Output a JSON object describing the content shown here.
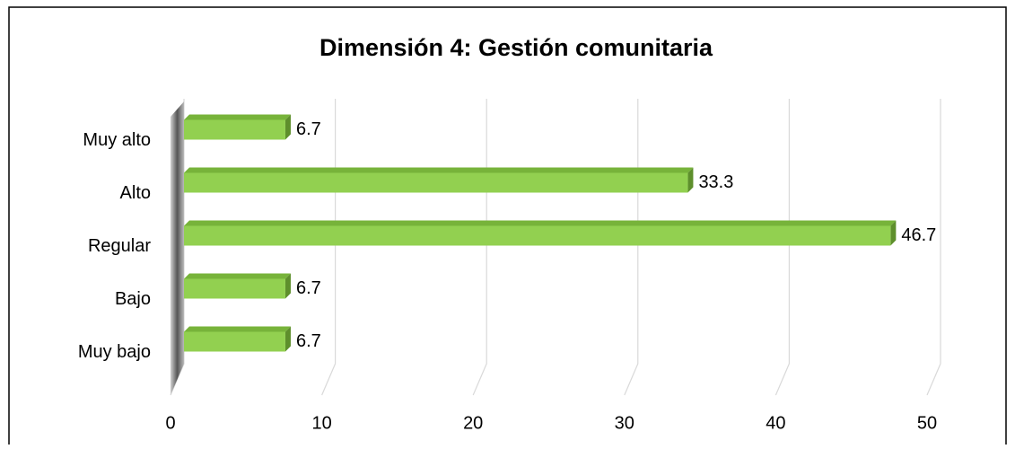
{
  "chart_data": {
    "type": "bar",
    "orientation": "horizontal",
    "title": "Dimensión 4: Gestión comunitaria",
    "categories": [
      "Muy alto",
      "Alto",
      "Regular",
      "Bajo",
      "Muy bajo"
    ],
    "values": [
      6.7,
      33.3,
      46.7,
      6.7,
      6.7
    ],
    "color": "#92d050",
    "xlim": [
      0,
      50
    ],
    "xticks": [
      0,
      10,
      20,
      30,
      40,
      50
    ],
    "grid": true
  }
}
